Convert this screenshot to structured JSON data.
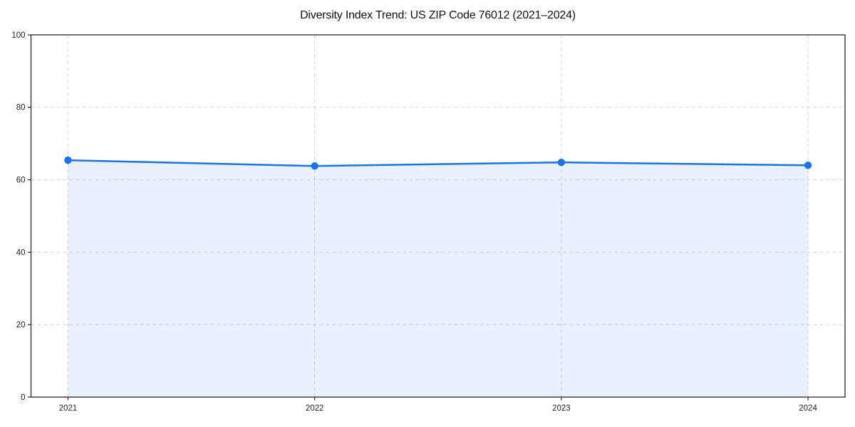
{
  "chart_data": {
    "type": "line",
    "title": "Diversity Index Trend: US ZIP Code 76012 (2021–2024)",
    "x": [
      2021,
      2022,
      2023,
      2024
    ],
    "values": [
      65.4,
      63.8,
      64.8,
      64.0
    ],
    "xtick_labels": [
      "2021",
      "2022",
      "2023",
      "2024"
    ],
    "ytick_labels": [
      "0",
      "20",
      "40",
      "60",
      "80",
      "100"
    ],
    "yticks": [
      0,
      20,
      40,
      60,
      80,
      100
    ],
    "xlim": [
      2020.85,
      2024.15
    ],
    "ylim": [
      0,
      100
    ],
    "xlabel": "",
    "ylabel": "",
    "grid": true,
    "grid_style": "dashed",
    "legend_position": "none",
    "area_fill": true,
    "colors": {
      "line": "#1a73e8",
      "marker": "#1a73e8",
      "area": "rgba(26,115,232,0.10)",
      "grid": "#c9c9c9",
      "spine": "#262626",
      "tick_label": "#262626",
      "title": "#111111",
      "background": "#ffffff"
    }
  }
}
